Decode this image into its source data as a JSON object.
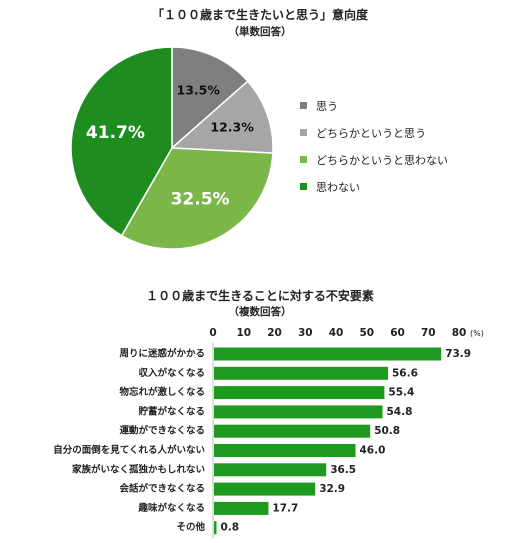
{
  "charts": {
    "pie": {
      "title": "「１００歳まで生きたいと思う」意向度",
      "subtitle": "（単数回答）"
    },
    "bar": {
      "title": "１００歳まで生きることに対する不安要素",
      "subtitle": "（複数回答）",
      "unit": "(%)"
    }
  },
  "chart_data": [
    {
      "type": "pie",
      "title": "「１００歳まで生きたいと思う」意向度",
      "subtitle": "（単数回答）",
      "legend_position": "right",
      "slices": [
        {
          "label": "思う",
          "value": 13.5,
          "display": "13.5%",
          "color": "#7f7f7f"
        },
        {
          "label": "どちらかというと思う",
          "value": 12.3,
          "display": "12.3%",
          "color": "#a6a6a6"
        },
        {
          "label": "どちらかというと思わない",
          "value": 32.5,
          "display": "32.5%",
          "color": "#7ab648"
        },
        {
          "label": "思わない",
          "value": 41.7,
          "display": "41.7%",
          "color": "#1e8c1e"
        }
      ]
    },
    {
      "type": "bar",
      "orientation": "horizontal",
      "title": "１００歳まで生きることに対する不安要素",
      "subtitle": "（複数回答）",
      "unit": "(%)",
      "xlim": [
        0,
        80
      ],
      "ticks": [
        0,
        10,
        20,
        30,
        40,
        50,
        60,
        70,
        80
      ],
      "bar_color": "#1e9b1e",
      "grid": false,
      "categories": [
        "周りに迷惑がかかる",
        "収入がなくなる",
        "物忘れが激しくなる",
        "貯蓄がなくなる",
        "運動ができなくなる",
        "自分の面倒を見てくれる人がいない",
        "家族がいなく孤独かもしれない",
        "会話ができなくなる",
        "趣味がなくなる",
        "その他"
      ],
      "values": [
        73.9,
        56.6,
        55.4,
        54.8,
        50.8,
        46.0,
        36.5,
        32.9,
        17.7,
        0.8
      ],
      "value_labels": [
        "73.9",
        "56.6",
        "55.4",
        "54.8",
        "50.8",
        "46.0",
        "36.5",
        "32.9",
        "17.7",
        "0.8"
      ]
    }
  ]
}
